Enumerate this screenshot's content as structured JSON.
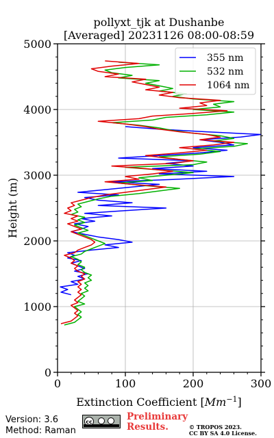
{
  "title_line1": "pollyxt_tjk at Dushanbe",
  "title_line2": "[Averaged] 20231126 08:00-08:59",
  "footer": {
    "version": "Version: 3.6",
    "method": "Method: Raman",
    "prelim_line1": "Preliminary",
    "prelim_line2": "Results.",
    "copyright_line1": "© TROPOS 2023.",
    "copyright_line2": "CC BY SA 4.0 License.",
    "cc_badge_text": "cc"
  },
  "chart_data": {
    "type": "line",
    "title": "pollyxt_tjk at Dushanbe [Averaged] 20231126 08:00-08:59",
    "xlabel": "Extinction Coefficient [Mm^-1]",
    "ylabel": "Height (m)",
    "xlim": [
      0,
      300
    ],
    "ylim": [
      0,
      5000
    ],
    "xticks": [
      0,
      100,
      200,
      300
    ],
    "yticks": [
      0,
      1000,
      2000,
      3000,
      4000,
      5000
    ],
    "grid": true,
    "legend_position": "top-right",
    "series": [
      {
        "name": "355 nm",
        "color": "#0000ff",
        "profile": [
          [
            20,
            1180
          ],
          [
            5,
            1220
          ],
          [
            15,
            1260
          ],
          [
            4,
            1300
          ],
          [
            30,
            1340
          ],
          [
            20,
            1380
          ],
          [
            40,
            1420
          ],
          [
            30,
            1460
          ],
          [
            45,
            1500
          ],
          [
            25,
            1540
          ],
          [
            40,
            1580
          ],
          [
            30,
            1620
          ],
          [
            20,
            1660
          ],
          [
            35,
            1700
          ],
          [
            15,
            1740
          ],
          [
            25,
            1780
          ],
          [
            15,
            1820
          ],
          [
            50,
            1860
          ],
          [
            90,
            1900
          ],
          [
            70,
            1940
          ],
          [
            110,
            1980
          ],
          [
            90,
            2020
          ],
          [
            60,
            2060
          ],
          [
            40,
            2100
          ],
          [
            20,
            2140
          ],
          [
            35,
            2180
          ],
          [
            45,
            2220
          ],
          [
            25,
            2260
          ],
          [
            55,
            2300
          ],
          [
            35,
            2340
          ],
          [
            80,
            2380
          ],
          [
            40,
            2420
          ],
          [
            100,
            2460
          ],
          [
            160,
            2500
          ],
          [
            60,
            2540
          ],
          [
            110,
            2580
          ],
          [
            60,
            2620
          ],
          [
            40,
            2660
          ],
          [
            90,
            2700
          ],
          [
            30,
            2740
          ],
          [
            70,
            2780
          ],
          [
            110,
            2820
          ],
          [
            150,
            2860
          ],
          [
            80,
            2900
          ],
          [
            180,
            2940
          ],
          [
            260,
            2980
          ],
          [
            150,
            3020
          ],
          [
            220,
            3060
          ],
          [
            140,
            3100
          ],
          [
            200,
            3140
          ],
          [
            160,
            3180
          ],
          [
            200,
            3220
          ],
          [
            90,
            3260
          ],
          [
            150,
            3300
          ],
          [
            210,
            3340
          ],
          [
            250,
            3380
          ],
          [
            200,
            3420
          ],
          [
            260,
            3460
          ],
          [
            240,
            3500
          ],
          [
            210,
            3540
          ],
          [
            270,
            3580
          ],
          [
            300,
            3620
          ],
          [
            220,
            3660
          ],
          [
            150,
            3700
          ],
          [
            100,
            3740
          ]
        ]
      },
      {
        "name": "532 nm",
        "color": "#00b000",
        "profile": [
          [
            10,
            720
          ],
          [
            25,
            760
          ],
          [
            30,
            800
          ],
          [
            35,
            840
          ],
          [
            30,
            880
          ],
          [
            35,
            920
          ],
          [
            30,
            960
          ],
          [
            25,
            1000
          ],
          [
            40,
            1040
          ],
          [
            30,
            1080
          ],
          [
            35,
            1120
          ],
          [
            40,
            1160
          ],
          [
            35,
            1200
          ],
          [
            45,
            1240
          ],
          [
            40,
            1280
          ],
          [
            45,
            1320
          ],
          [
            40,
            1360
          ],
          [
            50,
            1400
          ],
          [
            45,
            1440
          ],
          [
            50,
            1480
          ],
          [
            40,
            1520
          ],
          [
            35,
            1560
          ],
          [
            40,
            1600
          ],
          [
            30,
            1640
          ],
          [
            35,
            1680
          ],
          [
            30,
            1720
          ],
          [
            20,
            1760
          ],
          [
            35,
            1800
          ],
          [
            40,
            1840
          ],
          [
            50,
            1880
          ],
          [
            60,
            1920
          ],
          [
            70,
            1960
          ],
          [
            60,
            2000
          ],
          [
            50,
            2040
          ],
          [
            40,
            2080
          ],
          [
            30,
            2120
          ],
          [
            45,
            2160
          ],
          [
            35,
            2200
          ],
          [
            25,
            2240
          ],
          [
            40,
            2280
          ],
          [
            30,
            2320
          ],
          [
            40,
            2360
          ],
          [
            20,
            2400
          ],
          [
            30,
            2440
          ],
          [
            25,
            2480
          ],
          [
            35,
            2520
          ],
          [
            30,
            2560
          ],
          [
            45,
            2600
          ],
          [
            60,
            2640
          ],
          [
            80,
            2680
          ],
          [
            120,
            2720
          ],
          [
            150,
            2760
          ],
          [
            180,
            2800
          ],
          [
            130,
            2840
          ],
          [
            90,
            2880
          ],
          [
            140,
            2920
          ],
          [
            120,
            2960
          ],
          [
            160,
            3000
          ],
          [
            200,
            3040
          ],
          [
            150,
            3080
          ],
          [
            100,
            3120
          ],
          [
            200,
            3160
          ],
          [
            220,
            3200
          ],
          [
            180,
            3240
          ],
          [
            150,
            3280
          ],
          [
            210,
            3320
          ],
          [
            240,
            3360
          ],
          [
            200,
            3400
          ],
          [
            260,
            3440
          ],
          [
            280,
            3480
          ],
          [
            230,
            3520
          ],
          [
            260,
            3560
          ],
          [
            240,
            3600
          ],
          [
            200,
            3640
          ],
          [
            170,
            3680
          ],
          [
            150,
            3720
          ],
          [
            120,
            3760
          ],
          [
            80,
            3800
          ],
          [
            140,
            3840
          ],
          [
            160,
            3880
          ],
          [
            220,
            3920
          ],
          [
            260,
            3960
          ],
          [
            200,
            4000
          ],
          [
            240,
            4040
          ],
          [
            230,
            4080
          ],
          [
            260,
            4120
          ],
          [
            200,
            4160
          ],
          [
            170,
            4200
          ],
          [
            190,
            4240
          ],
          [
            150,
            4280
          ],
          [
            170,
            4320
          ],
          [
            150,
            4360
          ],
          [
            130,
            4400
          ],
          [
            150,
            4440
          ],
          [
            90,
            4480
          ],
          [
            110,
            4520
          ],
          [
            80,
            4560
          ],
          [
            70,
            4600
          ],
          [
            100,
            4640
          ],
          [
            150,
            4680
          ],
          [
            90,
            4720
          ]
        ]
      },
      {
        "name": "1064 nm",
        "color": "#e00000",
        "profile": [
          [
            5,
            740
          ],
          [
            20,
            780
          ],
          [
            25,
            820
          ],
          [
            30,
            860
          ],
          [
            25,
            900
          ],
          [
            30,
            940
          ],
          [
            25,
            980
          ],
          [
            20,
            1020
          ],
          [
            30,
            1060
          ],
          [
            25,
            1100
          ],
          [
            30,
            1140
          ],
          [
            35,
            1180
          ],
          [
            30,
            1220
          ],
          [
            35,
            1260
          ],
          [
            30,
            1300
          ],
          [
            35,
            1340
          ],
          [
            30,
            1380
          ],
          [
            40,
            1420
          ],
          [
            35,
            1460
          ],
          [
            40,
            1500
          ],
          [
            30,
            1540
          ],
          [
            25,
            1580
          ],
          [
            30,
            1620
          ],
          [
            20,
            1660
          ],
          [
            25,
            1700
          ],
          [
            20,
            1740
          ],
          [
            10,
            1780
          ],
          [
            25,
            1820
          ],
          [
            30,
            1860
          ],
          [
            40,
            1900
          ],
          [
            50,
            1940
          ],
          [
            55,
            1980
          ],
          [
            50,
            2020
          ],
          [
            40,
            2060
          ],
          [
            30,
            2100
          ],
          [
            20,
            2140
          ],
          [
            35,
            2180
          ],
          [
            25,
            2220
          ],
          [
            15,
            2260
          ],
          [
            30,
            2300
          ],
          [
            20,
            2340
          ],
          [
            30,
            2380
          ],
          [
            10,
            2420
          ],
          [
            20,
            2460
          ],
          [
            15,
            2500
          ],
          [
            25,
            2540
          ],
          [
            20,
            2580
          ],
          [
            35,
            2620
          ],
          [
            50,
            2660
          ],
          [
            70,
            2700
          ],
          [
            100,
            2740
          ],
          [
            130,
            2780
          ],
          [
            160,
            2820
          ],
          [
            110,
            2860
          ],
          [
            70,
            2900
          ],
          [
            120,
            2940
          ],
          [
            100,
            2980
          ],
          [
            140,
            3020
          ],
          [
            170,
            3060
          ],
          [
            130,
            3100
          ],
          [
            80,
            3140
          ],
          [
            170,
            3180
          ],
          [
            200,
            3220
          ],
          [
            160,
            3260
          ],
          [
            130,
            3300
          ],
          [
            180,
            3340
          ],
          [
            220,
            3380
          ],
          [
            180,
            3420
          ],
          [
            230,
            3460
          ],
          [
            260,
            3500
          ],
          [
            210,
            3540
          ],
          [
            240,
            3580
          ],
          [
            220,
            3620
          ],
          [
            180,
            3660
          ],
          [
            150,
            3700
          ],
          [
            130,
            3740
          ],
          [
            100,
            3780
          ],
          [
            60,
            3820
          ],
          [
            120,
            3860
          ],
          [
            140,
            3900
          ],
          [
            200,
            3940
          ],
          [
            250,
            3980
          ],
          [
            180,
            4020
          ],
          [
            220,
            4060
          ],
          [
            210,
            4100
          ],
          [
            240,
            4140
          ],
          [
            180,
            4180
          ],
          [
            150,
            4220
          ],
          [
            170,
            4260
          ],
          [
            130,
            4300
          ],
          [
            150,
            4340
          ],
          [
            130,
            4380
          ],
          [
            110,
            4420
          ],
          [
            130,
            4460
          ],
          [
            70,
            4500
          ],
          [
            90,
            4540
          ],
          [
            60,
            4580
          ],
          [
            50,
            4620
          ],
          [
            80,
            4660
          ],
          [
            120,
            4700
          ],
          [
            70,
            4740
          ]
        ]
      }
    ]
  }
}
